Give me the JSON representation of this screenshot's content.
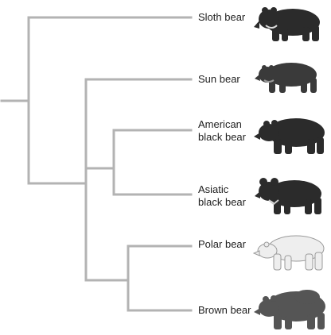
{
  "colors": {
    "branch": "#b3b3b3",
    "dark_bear": "#2b2b2b",
    "polar_bear": "#eeeeee",
    "brown_bear": "#555555"
  },
  "taxa": [
    {
      "label": "Sloth bear",
      "icon": "sloth-bear-icon"
    },
    {
      "label": "Sun bear",
      "icon": "sun-bear-icon"
    },
    {
      "label": "American\nblack bear",
      "icon": "american-black-bear-icon"
    },
    {
      "label": "Asiatic\nblack bear",
      "icon": "asiatic-black-bear-icon"
    },
    {
      "label": "Polar bear",
      "icon": "polar-bear-icon"
    },
    {
      "label": "Brown bear",
      "icon": "brown-bear-icon"
    }
  ]
}
